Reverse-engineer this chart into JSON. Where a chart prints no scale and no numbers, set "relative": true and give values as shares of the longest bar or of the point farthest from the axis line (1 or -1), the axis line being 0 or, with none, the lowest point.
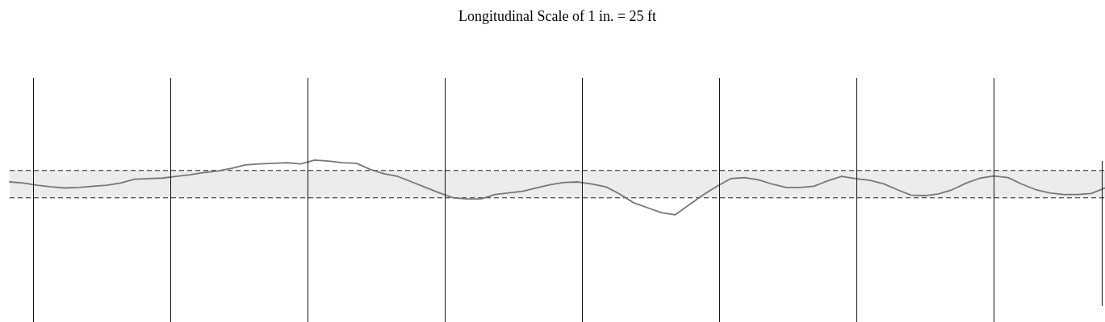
{
  "chart_data": {
    "type": "line",
    "title": "Longitudinal Scale of 1 in. = 25 ft",
    "relative": true,
    "categories": [
      null,
      null,
      null,
      null,
      null,
      null,
      null,
      null,
      null,
      null,
      null,
      null,
      null,
      null,
      null,
      null,
      null,
      null,
      null,
      null,
      null,
      null,
      null,
      null,
      null,
      null,
      null,
      null,
      null,
      null,
      null,
      null,
      null,
      null,
      null,
      null,
      null,
      null,
      null,
      null,
      null,
      null,
      null,
      null,
      null,
      null,
      null,
      null,
      null,
      null,
      null,
      null,
      null,
      null,
      null,
      null,
      null,
      null,
      null,
      null,
      null,
      null,
      null,
      null,
      null,
      null,
      null,
      null,
      null,
      null,
      null,
      null,
      null,
      null,
      null,
      null,
      null,
      null,
      null,
      null
    ],
    "series": [
      {
        "color": "#777777",
        "values": [
          0.6,
          0.58,
          0.54,
          0.51,
          0.49,
          0.5,
          0.52,
          0.54,
          0.58,
          0.65,
          0.66,
          0.67,
          0.7,
          0.73,
          0.77,
          0.8,
          0.85,
          0.91,
          0.93,
          0.94,
          0.95,
          0.93,
          1,
          0.98,
          0.95,
          0.94,
          0.83,
          0.75,
          0.7,
          0.6,
          0.5,
          0.4,
          0.31,
          0.29,
          0.29,
          0.37,
          0.4,
          0.43,
          0.49,
          0.55,
          0.59,
          0.6,
          0.56,
          0.51,
          0.38,
          0.22,
          0.13,
          0.04,
          0,
          0.18,
          0.36,
          0.52,
          0.66,
          0.68,
          0.64,
          0.56,
          0.5,
          0.5,
          0.52,
          0.62,
          0.7,
          0.66,
          0.63,
          0.57,
          0.46,
          0.36,
          0.35,
          0.38,
          0.46,
          0.58,
          0.67,
          0.71,
          0.68,
          0.56,
          0.46,
          0.4,
          0.37,
          0.37,
          0.39,
          0.49
        ]
      }
    ],
    "bands": [
      {
        "axis": "y",
        "from": 0.31,
        "to": 0.81,
        "color": "#ececec"
      }
    ],
    "ref_lines": [
      {
        "axis": "y",
        "value": 0.81,
        "color": "#222222",
        "line_style": "dashed"
      },
      {
        "axis": "y",
        "value": 0.31,
        "color": "#222222",
        "line_style": "dashed"
      }
    ],
    "legend": false,
    "marker": "none",
    "line_style": "solid"
  }
}
